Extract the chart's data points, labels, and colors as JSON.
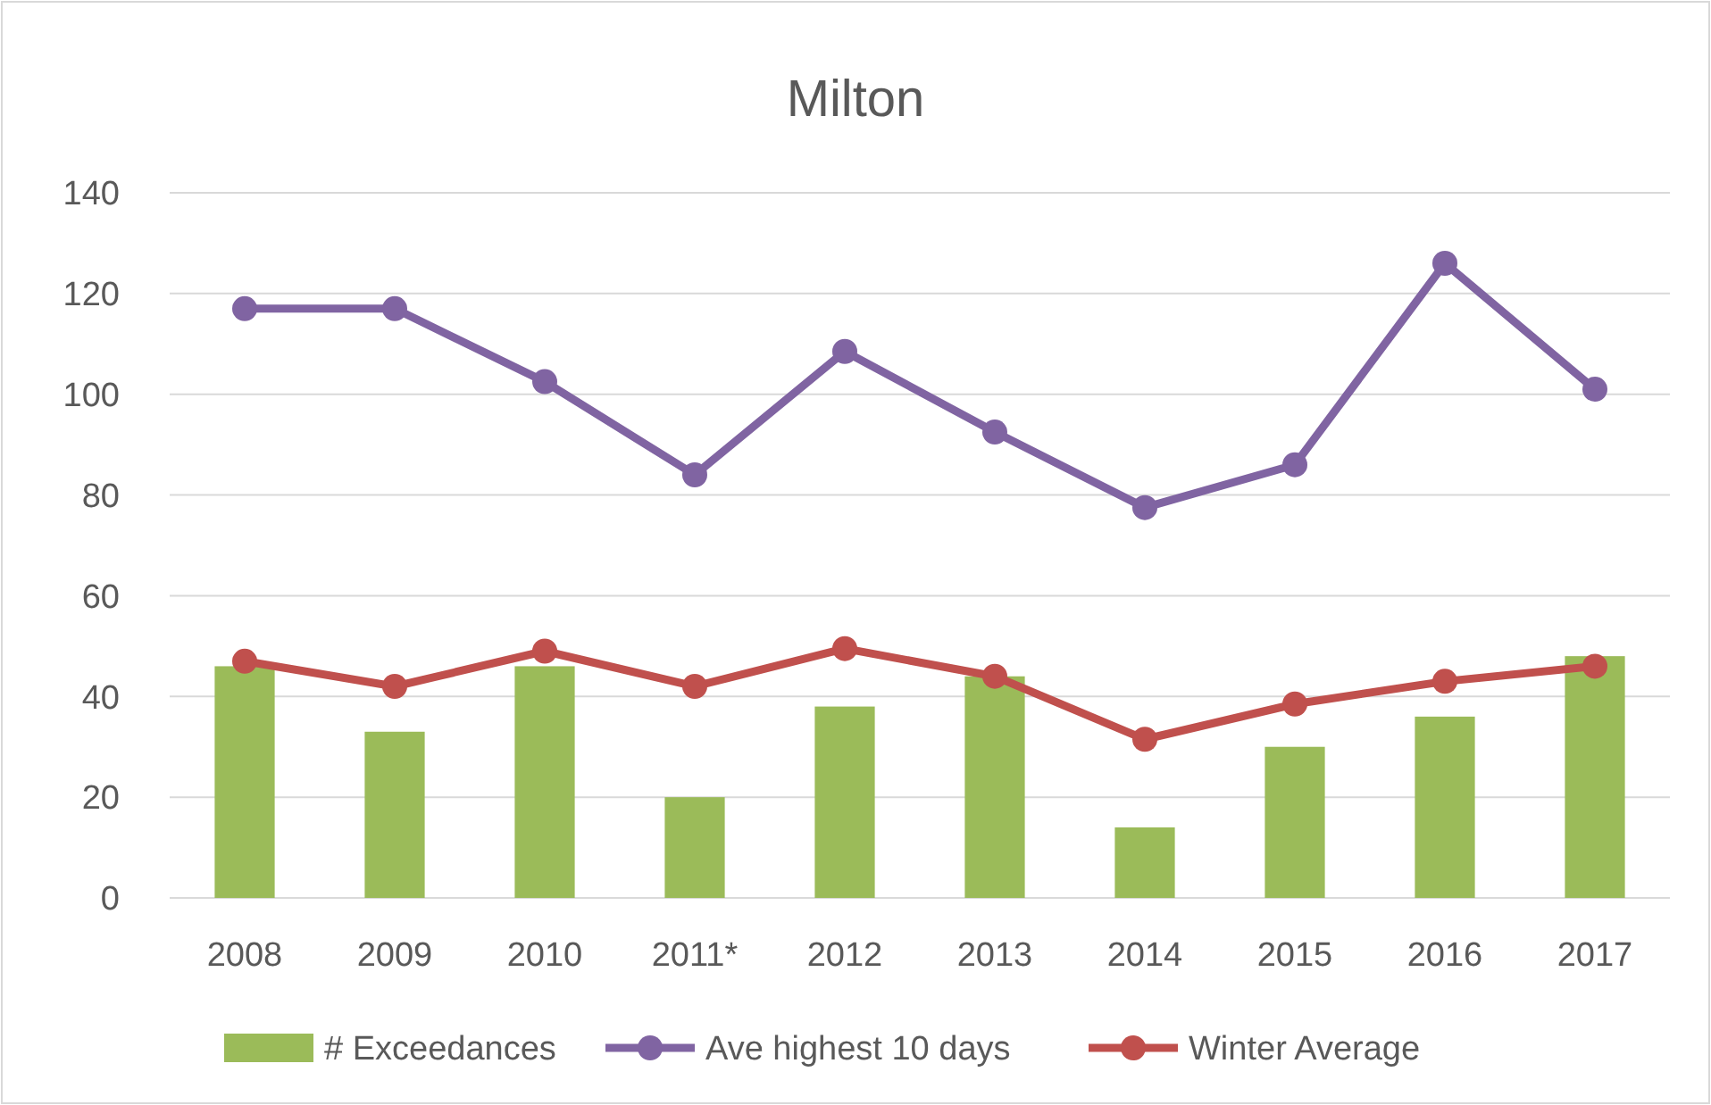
{
  "chart_data": {
    "type": "bar",
    "title": "Milton",
    "categories": [
      "2008",
      "2009",
      "2010",
      "2011*",
      "2012",
      "2013",
      "2014",
      "2015",
      "2016",
      "2017"
    ],
    "series": [
      {
        "name": "# Exceedances",
        "color": "#9bbb59",
        "values": [
          46,
          33,
          46,
          20,
          38,
          44,
          14,
          30,
          36,
          48
        ]
      },
      {
        "name": "Ave highest 10 days",
        "type": "line",
        "color": "#8064a2",
        "values": [
          117,
          117,
          102.5,
          84,
          108.5,
          92.5,
          77.5,
          86,
          126,
          101
        ]
      },
      {
        "name": "Winter Average",
        "type": "line",
        "color": "#c0504d",
        "values": [
          47,
          42,
          49,
          42,
          49.5,
          44,
          31.5,
          38.5,
          43,
          46
        ]
      }
    ],
    "ylim": [
      0,
      140
    ],
    "yticks": [
      0,
      20,
      40,
      60,
      80,
      100,
      120,
      140
    ],
    "grid": "y",
    "legend": "bottom",
    "marker": "circle"
  }
}
